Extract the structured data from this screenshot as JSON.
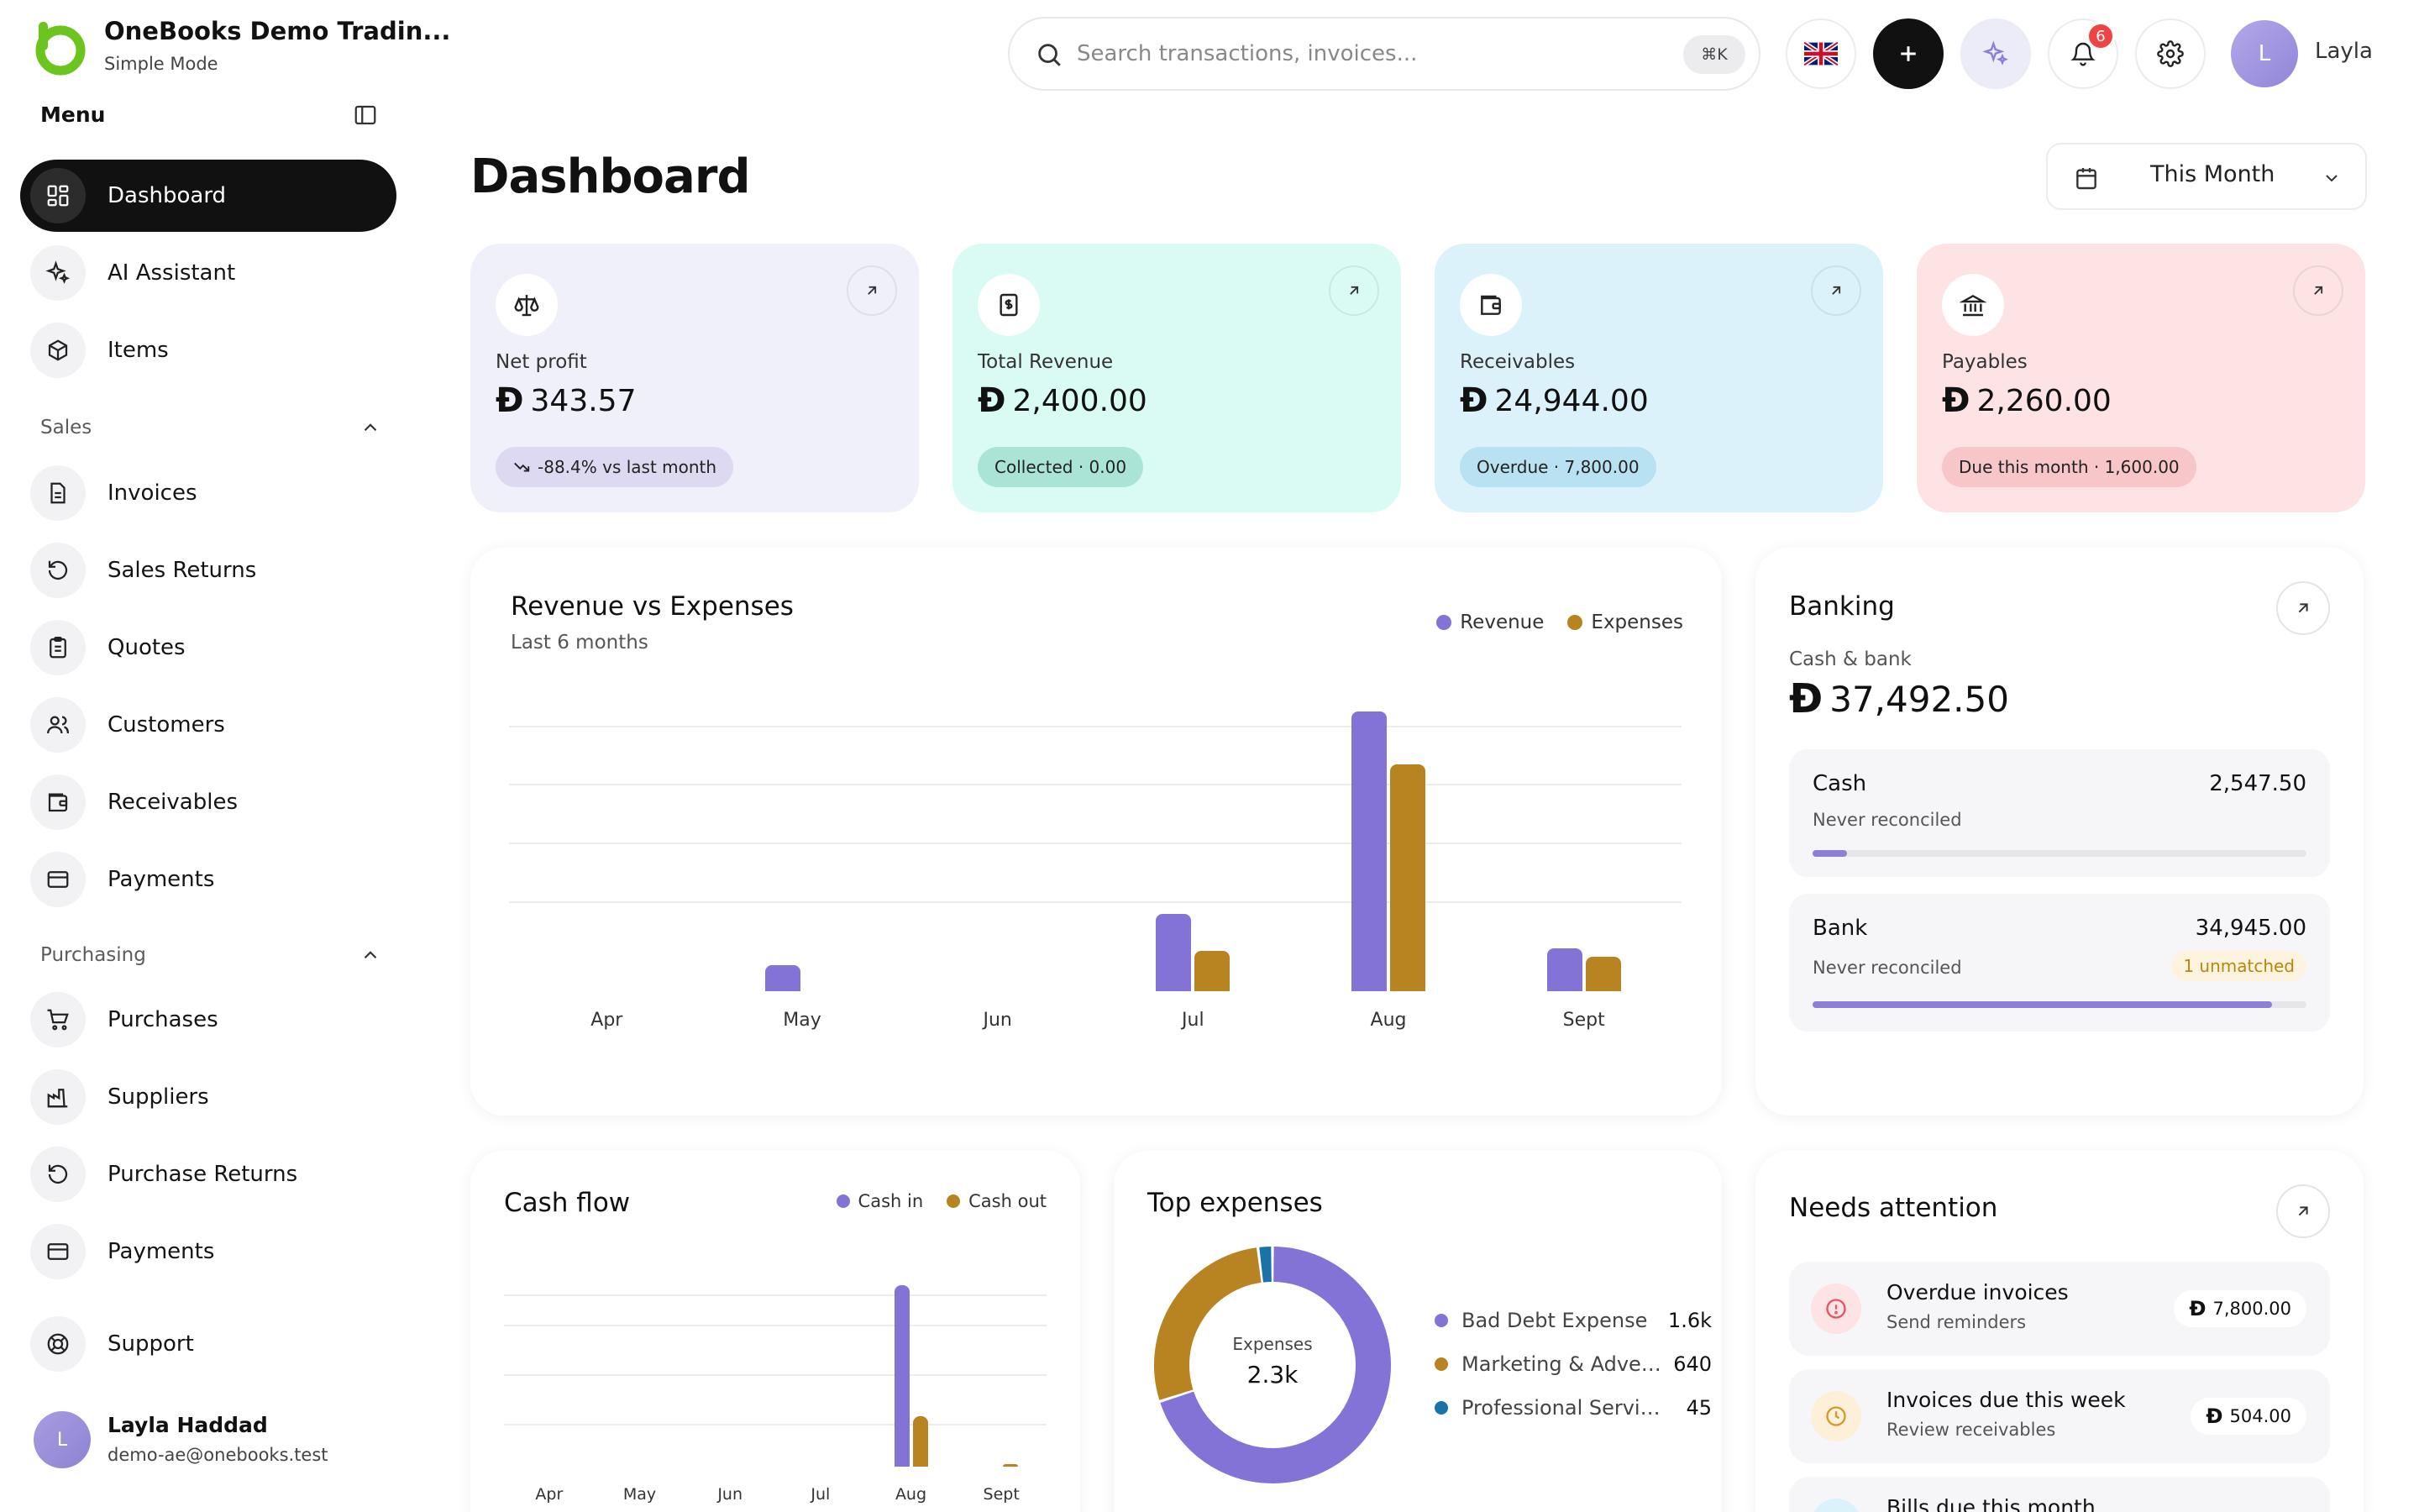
{
  "app": {
    "company": "OneBooks Demo Tradin...",
    "mode": "Simple Mode"
  },
  "sidebar": {
    "menu_label": "Menu",
    "top_items": [
      {
        "label": "Dashboard",
        "icon": "grid-icon",
        "active": true
      },
      {
        "label": "AI Assistant",
        "icon": "sparkles-icon"
      },
      {
        "label": "Items",
        "icon": "box-icon"
      }
    ],
    "sales_label": "Sales",
    "sales_items": [
      {
        "label": "Invoices",
        "icon": "file-text-icon"
      },
      {
        "label": "Sales Returns",
        "icon": "rotate-ccw-icon"
      },
      {
        "label": "Quotes",
        "icon": "clipboard-icon"
      },
      {
        "label": "Customers",
        "icon": "users-icon"
      },
      {
        "label": "Receivables",
        "icon": "wallet-icon"
      },
      {
        "label": "Payments",
        "icon": "credit-card-icon"
      }
    ],
    "purchasing_label": "Purchasing",
    "purchasing_items": [
      {
        "label": "Purchases",
        "icon": "cart-icon"
      },
      {
        "label": "Suppliers",
        "icon": "factory-icon"
      },
      {
        "label": "Purchase Returns",
        "icon": "rotate-ccw-icon"
      },
      {
        "label": "Payments",
        "icon": "credit-card-icon"
      }
    ],
    "support_label": "Support",
    "user": {
      "initial": "L",
      "name": "Layla Haddad",
      "email": "demo-ae@onebooks.test"
    }
  },
  "topbar": {
    "search_placeholder": "Search transactions, invoices...",
    "shortcut": "⌘K",
    "notifications_count": "6",
    "user_initial": "L",
    "user_name": "Layla"
  },
  "page": {
    "title": "Dashboard",
    "period": "This Month"
  },
  "currency_symbol": "Ð",
  "kpis": [
    {
      "label": "Net profit",
      "value": "343.57",
      "pill": "-88.4% vs last month",
      "bg": "#f0f0fb",
      "pill_bg": "#dcd9f1",
      "icon": "scale-icon"
    },
    {
      "label": "Total Revenue",
      "value": "2,400.00",
      "pill": "Collected · 0.00",
      "bg": "#dafbf4",
      "pill_bg": "#a9e4d7",
      "icon": "receipt-icon"
    },
    {
      "label": "Receivables",
      "value": "24,944.00",
      "pill": "Overdue · 7,800.00",
      "bg": "#dcf2fb",
      "pill_bg": "#b8e1f1",
      "icon": "wallet-icon"
    },
    {
      "label": "Payables",
      "value": "2,260.00",
      "pill": "Due this month · 1,600.00",
      "bg": "#fde3e4",
      "pill_bg": "#f7c6c9",
      "icon": "bank-icon"
    }
  ],
  "colors": {
    "revenue": "#8373d6",
    "expenses": "#b88321",
    "prof_services": "#1a73a8"
  },
  "revenue_expenses": {
    "title": "Revenue vs Expenses",
    "subtitle": "Last 6 months",
    "legend": [
      "Revenue",
      "Expenses"
    ]
  },
  "chart_data": [
    {
      "type": "bar",
      "title": "Revenue vs Expenses",
      "subtitle": "Last 6 months",
      "categories": [
        "Apr",
        "May",
        "Jun",
        "Jul",
        "Aug",
        "Sept"
      ],
      "series": [
        {
          "name": "Revenue",
          "values": [
            0,
            350,
            0,
            1050,
            3800,
            580
          ]
        },
        {
          "name": "Expenses",
          "values": [
            0,
            0,
            0,
            550,
            3080,
            470
          ]
        }
      ],
      "ylim": [
        0,
        4200
      ],
      "grid": true,
      "legend": "top-right"
    },
    {
      "type": "bar",
      "title": "Cash flow",
      "categories": [
        "Apr",
        "May",
        "Jun",
        "Jul",
        "Aug",
        "Sept"
      ],
      "series": [
        {
          "name": "Cash in",
          "values": [
            0,
            0,
            0,
            0,
            3800,
            0
          ]
        },
        {
          "name": "Cash out",
          "values": [
            0,
            0,
            0,
            0,
            1050,
            50
          ]
        }
      ],
      "ylim": [
        0,
        4500
      ],
      "grid": true,
      "legend": "top-right"
    },
    {
      "type": "pie",
      "title": "Top expenses",
      "center_label": "Expenses",
      "center_value": "2.3k",
      "labels": [
        "Bad Debt Expense",
        "Marketing & Adverti...",
        "Professional Services"
      ],
      "display_values": [
        "1.6k",
        "640",
        "45"
      ],
      "values": [
        1600,
        640,
        45
      ]
    }
  ],
  "cashflow": {
    "title": "Cash flow",
    "legend": [
      "Cash in",
      "Cash out"
    ]
  },
  "top_expenses": {
    "title": "Top expenses"
  },
  "banking": {
    "title": "Banking",
    "subtitle": "Cash & bank",
    "total": "37,492.50",
    "accounts": [
      {
        "name": "Cash",
        "value": "2,547.50",
        "status": "Never reconciled",
        "progress": 0.07
      },
      {
        "name": "Bank",
        "value": "34,945.00",
        "status": "Never reconciled",
        "badge": "1 unmatched",
        "progress": 0.93
      }
    ]
  },
  "attention": {
    "title": "Needs attention",
    "items": [
      {
        "title": "Overdue invoices",
        "sub": "Send reminders",
        "amount": "7,800.00",
        "icon": "alert-circle-icon",
        "tone": "#fde3e4",
        "icon_color": "#e05563"
      },
      {
        "title": "Invoices due this week",
        "sub": "Review receivables",
        "amount": "504.00",
        "icon": "clock-icon",
        "tone": "#fdf0d8",
        "icon_color": "#d39a28"
      },
      {
        "title": "Bills due this month",
        "sub": "",
        "amount": "",
        "icon": "receipt-icon",
        "tone": "#dcf2fb",
        "icon_color": "#2b8fc2"
      }
    ]
  }
}
